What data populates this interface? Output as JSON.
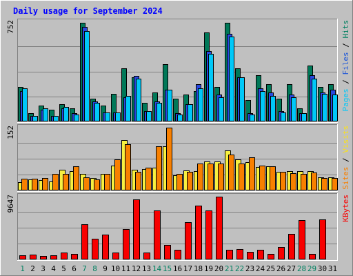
{
  "chart_data": {
    "type": "bar",
    "title": "Daily usage for September 2024",
    "days": [
      "1",
      "2",
      "3",
      "4",
      "5",
      "6",
      "7",
      "8",
      "9",
      "10",
      "11",
      "12",
      "13",
      "14",
      "15",
      "16",
      "17",
      "18",
      "19",
      "20",
      "21",
      "22",
      "23",
      "24",
      "25",
      "26",
      "27",
      "28",
      "29",
      "30",
      "31"
    ],
    "weekend_days": [
      "1",
      "7",
      "8",
      "14",
      "15",
      "21",
      "22",
      "28",
      "29"
    ],
    "panels": [
      {
        "id": "hits",
        "max_label": "752",
        "max_value": 752,
        "right_label_parts": [
          {
            "text": "Pages",
            "color": "#00c8f8"
          },
          {
            "text": " / ",
            "color": "#000000"
          },
          {
            "text": "Files",
            "color": "#2058d8"
          },
          {
            "text": " / ",
            "color": "#000000"
          },
          {
            "text": "Hits",
            "color": "#008060"
          }
        ],
        "series": [
          {
            "name": "Hits",
            "color": "#007858",
            "values": [
              260,
              60,
              120,
              90,
              130,
              100,
              740,
              170,
              120,
              210,
              400,
              330,
              140,
              220,
              430,
              170,
              200,
              230,
              670,
              260,
              740,
              400,
              160,
              350,
              280,
              170,
              280,
              100,
              420,
              260,
              280
            ]
          },
          {
            "name": "Files",
            "color": "#2848e0",
            "values": [
              230,
              40,
              90,
              40,
              100,
              60,
              710,
              150,
              70,
              70,
              180,
              340,
              80,
              150,
              240,
              60,
              130,
              280,
              530,
              200,
              660,
              330,
              60,
              250,
              220,
              80,
              200,
              60,
              350,
              220,
              240
            ]
          },
          {
            "name": "Pages",
            "color": "#00c8f8",
            "values": [
              250,
              40,
              100,
              40,
              110,
              50,
              680,
              140,
              70,
              70,
              190,
              320,
              80,
              140,
              240,
              50,
              130,
              250,
              510,
              180,
              640,
              330,
              50,
              230,
              190,
              70,
              180,
              60,
              320,
              210,
              200
            ]
          }
        ]
      },
      {
        "id": "visits",
        "max_label": "152",
        "max_value": 152,
        "right_label_parts": [
          {
            "text": "Sites",
            "color": "#f88000"
          },
          {
            "text": " / ",
            "color": "#000000"
          },
          {
            "text": "Visits",
            "color": "#f8e020"
          }
        ],
        "series": [
          {
            "name": "Visits",
            "color": "#f8f040",
            "values": [
              20,
              26,
              25,
              22,
              50,
              46,
              40,
              30,
              40,
              60,
              120,
              50,
              52,
              54,
              105,
              37,
              48,
              47,
              69,
              70,
              95,
              74,
              67,
              56,
              58,
              45,
              47,
              47,
              46,
              32,
              32
            ]
          },
          {
            "name": "Sites",
            "color": "#f88000",
            "values": [
              28,
              28,
              30,
              40,
              40,
              58,
              31,
              26,
              40,
              75,
              110,
              45,
              55,
              106,
              150,
              40,
              45,
              64,
              64,
              64,
              86,
              64,
              80,
              59,
              58,
              45,
              42,
              39,
              43,
              30,
              30
            ]
          }
        ]
      },
      {
        "id": "kbytes",
        "max_label": "9647",
        "max_value": 9647,
        "right_label_parts": [
          {
            "text": "KBytes",
            "color": "#f80000"
          }
        ],
        "series": [
          {
            "name": "KBytes",
            "color": "#f80000",
            "values": [
              600,
              700,
              500,
              600,
              1000,
              800,
              5400,
              3100,
              3800,
              1100,
              4600,
              9100,
              1000,
              7400,
              2200,
              1500,
              5700,
              8200,
              7400,
              9500,
              1500,
              1600,
              1200,
              1500,
              800,
              1900,
              3900,
              6000,
              800,
              6100,
              0
            ]
          }
        ]
      }
    ]
  }
}
